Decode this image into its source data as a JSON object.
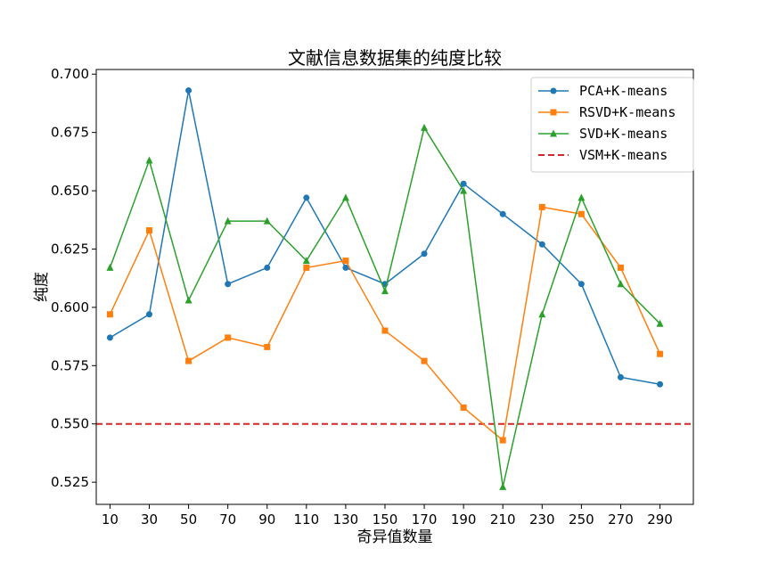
{
  "chart_data": {
    "type": "line",
    "title": "文献信息数据集的纯度比较",
    "xlabel": "奇异值数量",
    "ylabel": "纯度",
    "x": [
      10,
      30,
      50,
      70,
      90,
      110,
      130,
      150,
      170,
      190,
      210,
      230,
      250,
      270,
      290
    ],
    "xticks": [
      "10",
      "30",
      "50",
      "70",
      "90",
      "110",
      "130",
      "150",
      "170",
      "190",
      "210",
      "230",
      "250",
      "270",
      "290"
    ],
    "yticks": [
      "0.525",
      "0.550",
      "0.575",
      "0.600",
      "0.625",
      "0.650",
      "0.675",
      "0.700"
    ],
    "ytick_values": [
      0.525,
      0.55,
      0.575,
      0.6,
      0.625,
      0.65,
      0.675,
      0.7
    ],
    "xlim": [
      3,
      307
    ],
    "ylim": [
      0.5155,
      0.702
    ],
    "grid": false,
    "legend_position": "top-right",
    "series": [
      {
        "name": "PCA+K-means",
        "color": "#1f77b4",
        "marker": "circle",
        "values": [
          0.587,
          0.597,
          0.693,
          0.61,
          0.617,
          0.647,
          0.617,
          0.61,
          0.623,
          0.653,
          0.64,
          0.627,
          0.61,
          0.57,
          0.567
        ]
      },
      {
        "name": "RSVD+K-means",
        "color": "#ff7f0e",
        "marker": "square",
        "values": [
          0.597,
          0.633,
          0.577,
          0.587,
          0.583,
          0.617,
          0.62,
          0.59,
          0.577,
          0.557,
          0.543,
          0.643,
          0.64,
          0.617,
          0.58
        ]
      },
      {
        "name": "SVD+K-means",
        "color": "#2ca02c",
        "marker": "triangle",
        "values": [
          0.617,
          0.663,
          0.603,
          0.637,
          0.637,
          0.62,
          0.647,
          0.607,
          0.677,
          0.65,
          0.523,
          0.597,
          0.647,
          0.61,
          0.593
        ]
      }
    ],
    "reference_lines": [
      {
        "name": "VSM+K-means",
        "color": "#d62728",
        "style": "dashed",
        "y": 0.55
      }
    ]
  }
}
